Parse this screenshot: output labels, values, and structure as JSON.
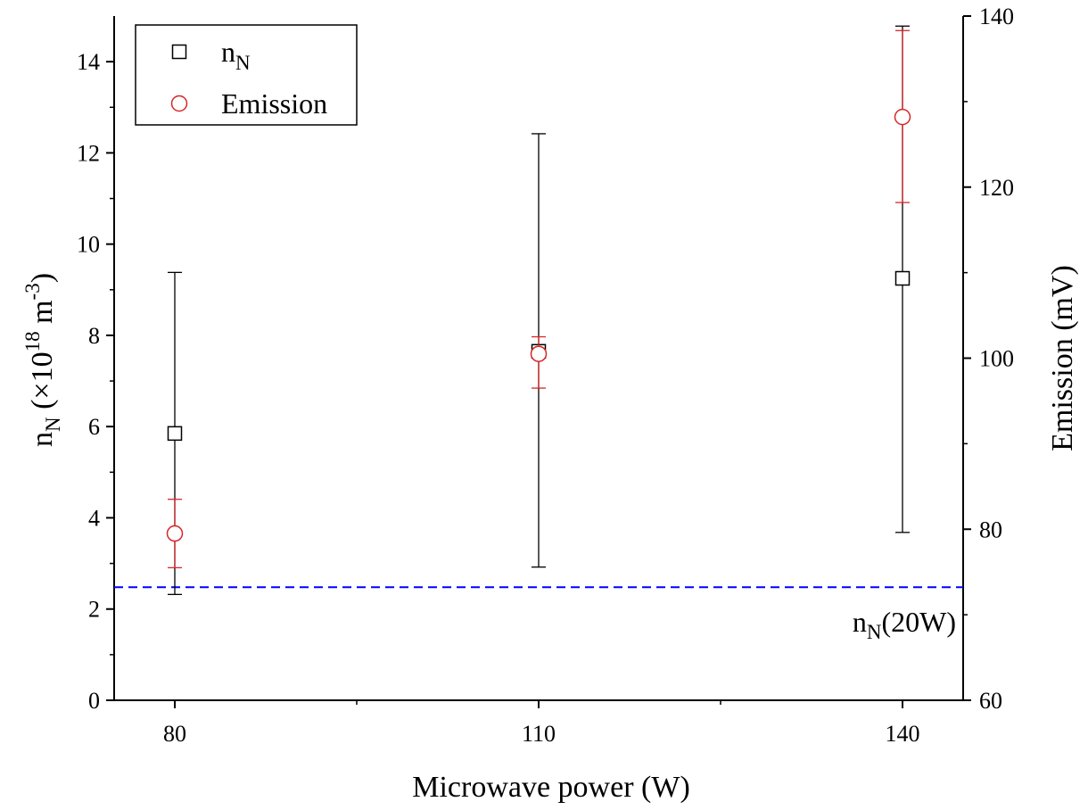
{
  "chart_data": {
    "type": "scatter",
    "xlabel": "Microwave power (W)",
    "ylabel_left": {
      "main": "n",
      "sub": "N",
      "rest_pre": " (×10",
      "sup1": "18",
      "rest_mid": " m",
      "sup2": "-3",
      "rest_post": ")"
    },
    "ylabel_right": "Emission (mV)",
    "x_ticks": [
      80,
      110,
      140
    ],
    "xlim": [
      75,
      145
    ],
    "ylim_left": [
      0,
      15
    ],
    "yticks_left": [
      0,
      2,
      4,
      6,
      8,
      10,
      12,
      14
    ],
    "ylim_right": [
      60,
      140
    ],
    "yticks_right": [
      60,
      80,
      100,
      120,
      140
    ],
    "series": [
      {
        "name": {
          "main": "n",
          "sub": "N"
        },
        "axis": "left",
        "marker": "square",
        "color": "#000000",
        "x": [
          80,
          110,
          140
        ],
        "y": [
          5.85,
          7.65,
          9.25
        ],
        "err_low": [
          2.32,
          2.92,
          3.68
        ],
        "err_high": [
          9.38,
          12.42,
          14.78
        ]
      },
      {
        "name": "Emission",
        "axis": "right",
        "marker": "circle",
        "color": "#d62728",
        "x": [
          80,
          110,
          140
        ],
        "y": [
          79.5,
          100.5,
          128.2
        ],
        "err_low": [
          75.5,
          96.5,
          118.2
        ],
        "err_high": [
          83.5,
          102.5,
          138.3
        ]
      }
    ],
    "reference_line": {
      "axis": "left",
      "y": 2.48,
      "color": "#0000ff",
      "style": "dashed",
      "label": {
        "main": "n",
        "sub": "N",
        "rest": "(20W)"
      }
    },
    "legend_position": "top-left"
  }
}
